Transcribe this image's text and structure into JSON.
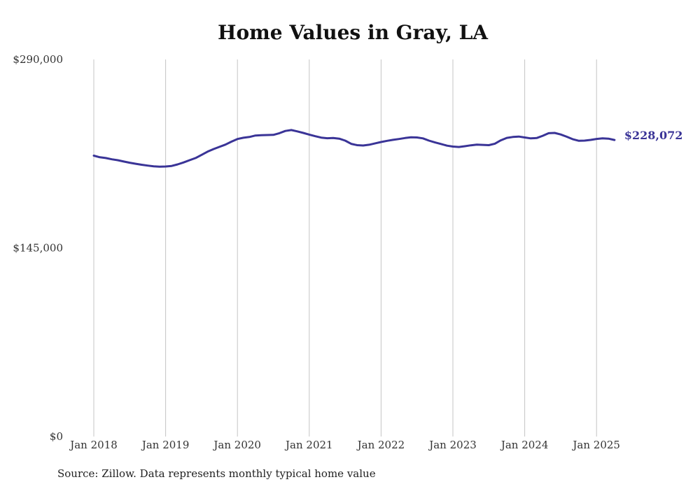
{
  "chart_data": {
    "type": "line",
    "title": "Home Values in Gray, LA",
    "xlabel": "",
    "ylabel": "",
    "ylim": [
      0,
      290000
    ],
    "y_ticks": [
      "$290,000",
      "$145,000",
      "$0"
    ],
    "y_tick_values": [
      290000,
      145000,
      0
    ],
    "x_ticks": [
      "Jan 2018",
      "Jan 2019",
      "Jan 2020",
      "Jan 2021",
      "Jan 2022",
      "Jan 2023",
      "Jan 2024",
      "Jan 2025"
    ],
    "x_tick_dates": [
      "2018-01",
      "2019-01",
      "2020-01",
      "2021-01",
      "2022-01",
      "2023-01",
      "2024-01",
      "2025-01"
    ],
    "grid": "vertical",
    "line_color": "#3a3497",
    "end_label": "$228,072",
    "series": [
      {
        "x": [
          "2018-01",
          "2018-02",
          "2018-03",
          "2018-04",
          "2018-05",
          "2018-06",
          "2018-07",
          "2018-08",
          "2018-09",
          "2018-10",
          "2018-11",
          "2018-12",
          "2019-01",
          "2019-02",
          "2019-03",
          "2019-04",
          "2019-05",
          "2019-06",
          "2019-07",
          "2019-08",
          "2019-09",
          "2019-10",
          "2019-11",
          "2019-12",
          "2020-01",
          "2020-02",
          "2020-03",
          "2020-04",
          "2020-05",
          "2020-06",
          "2020-07",
          "2020-08",
          "2020-09",
          "2020-10",
          "2020-11",
          "2020-12",
          "2021-01",
          "2021-02",
          "2021-03",
          "2021-04",
          "2021-05",
          "2021-06",
          "2021-07",
          "2021-08",
          "2021-09",
          "2021-10",
          "2021-11",
          "2021-12",
          "2022-01",
          "2022-02",
          "2022-03",
          "2022-04",
          "2022-05",
          "2022-06",
          "2022-07",
          "2022-08",
          "2022-09",
          "2022-10",
          "2022-11",
          "2022-12",
          "2023-01",
          "2023-02",
          "2023-03",
          "2023-04",
          "2023-05",
          "2023-06",
          "2023-07",
          "2023-08",
          "2023-09",
          "2023-10",
          "2023-11",
          "2023-12",
          "2024-01",
          "2024-02",
          "2024-03",
          "2024-04",
          "2024-05",
          "2024-06",
          "2024-07",
          "2024-08",
          "2024-09",
          "2024-10",
          "2024-11",
          "2024-12",
          "2025-01",
          "2025-02",
          "2025-03",
          "2025-04"
        ],
        "values": [
          216000,
          214800,
          214200,
          213200,
          212500,
          211500,
          210600,
          209800,
          209000,
          208400,
          207800,
          207600,
          207700,
          208100,
          209300,
          210800,
          212500,
          214200,
          216600,
          219100,
          221100,
          222800,
          224500,
          226800,
          228800,
          229800,
          230400,
          231500,
          231800,
          231900,
          232000,
          233300,
          235000,
          235700,
          234700,
          233500,
          232200,
          231000,
          229900,
          229400,
          229600,
          229100,
          227600,
          225100,
          224100,
          223800,
          224400,
          225500,
          226500,
          227400,
          228200,
          228800,
          229600,
          230100,
          230000,
          229300,
          227600,
          226200,
          225000,
          223700,
          223000,
          222700,
          223300,
          224000,
          224500,
          224300,
          224100,
          225200,
          227800,
          229700,
          230400,
          230700,
          230000,
          229300,
          229600,
          231300,
          233300,
          233500,
          232300,
          230600,
          228700,
          227500,
          227600,
          228100,
          228900,
          229300,
          229100,
          228072
        ]
      }
    ]
  },
  "source": "Source: Zillow. Data represents monthly typical home value"
}
